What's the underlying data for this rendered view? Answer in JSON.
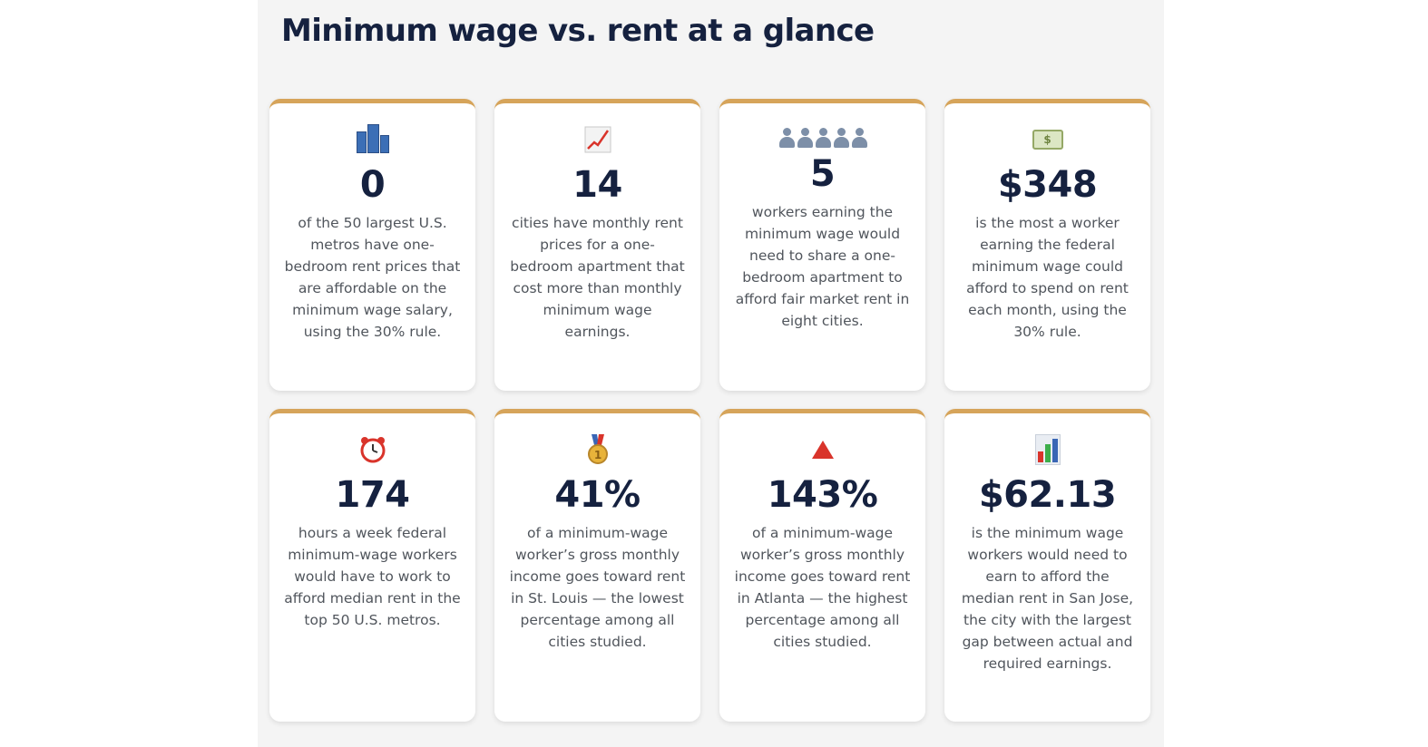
{
  "page": {
    "title": "Minimum wage vs. rent at a glance"
  },
  "colors": {
    "panel_bg": "#f4f4f4",
    "card_bg": "#ffffff",
    "card_accent": "#d6a45a",
    "heading": "#15213f",
    "body_text": "#50555c"
  },
  "cards": [
    {
      "icon": "city-buildings-icon",
      "value": "0",
      "text": "of the 50 largest U.S. metros have one-bedroom rent prices that are affordable on the minimum wage salary, using the 30% rule."
    },
    {
      "icon": "chart-increasing-icon",
      "value": "14",
      "text": "cities have monthly rent prices for a one-bedroom apartment that cost more than monthly minimum wage earnings."
    },
    {
      "icon": "five-people-icon",
      "value": "5",
      "text": "workers earning the minimum wage would need to share a one-bedroom apartment to afford fair market rent in eight cities."
    },
    {
      "icon": "dollar-bill-icon",
      "value": "$348",
      "text": "is the most a worker earning the federal minimum wage could afford to spend on rent each month, using the 30% rule."
    },
    {
      "icon": "alarm-clock-icon",
      "value": "174",
      "text": "hours a week federal minimum-wage workers would have to work to afford median rent in the top 50 U.S. metros."
    },
    {
      "icon": "first-place-medal-icon",
      "value": "41%",
      "text": "of a minimum-wage worker’s gross monthly income goes toward rent in St. Louis — the lowest percentage among all cities studied."
    },
    {
      "icon": "red-triangle-up-icon",
      "value": "143%",
      "text": "of a minimum-wage worker’s gross monthly income goes toward rent in Atlanta — the highest percentage among all cities studied."
    },
    {
      "icon": "bar-chart-icon",
      "value": "$62.13",
      "text": "is the minimum wage workers would need to earn to afford the median rent in San Jose, the city with the largest gap between actual and required earnings."
    }
  ]
}
